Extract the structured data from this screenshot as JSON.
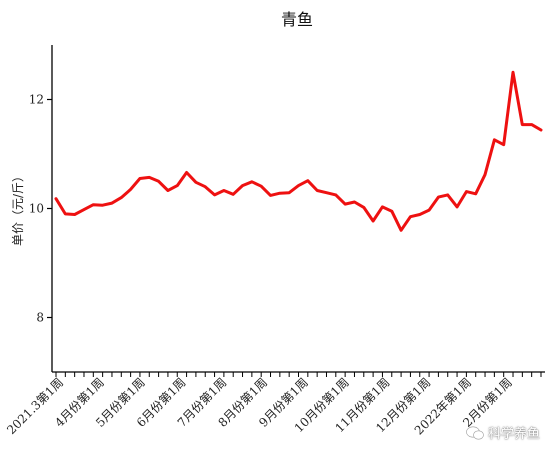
{
  "chart_data": {
    "type": "line",
    "title": "青鱼",
    "ylabel": "单价（元/斤）",
    "xlabel": "",
    "ylim": [
      7,
      13
    ],
    "yticks": [
      8,
      10,
      12
    ],
    "grid": false,
    "line_color": "#ee1111",
    "x_tick_labels": [
      "2021.3第1周",
      "4月份第1周",
      "5月份第1周",
      "6月份第1周",
      "7月份第1周",
      "8月份第1周",
      "9月份第1周",
      "10月份第1周",
      "11月份第1周",
      "12月份第1周",
      "2022年第1周",
      "2月份第1周"
    ],
    "series": [
      {
        "values": [
          10.18,
          9.9,
          9.89,
          9.98,
          10.07,
          10.06,
          10.1,
          10.2,
          10.35,
          10.55,
          10.57,
          10.5,
          10.33,
          10.42,
          10.66,
          10.48,
          10.4,
          10.25,
          10.33,
          10.26,
          10.42,
          10.49,
          10.41,
          10.24,
          10.28,
          10.29,
          10.42,
          10.51,
          10.33,
          10.29,
          10.25,
          10.08,
          10.12,
          10.02,
          9.77,
          10.03,
          9.95,
          9.6,
          9.85,
          9.89,
          9.97,
          10.21,
          10.25,
          10.03,
          10.31,
          10.27,
          10.62,
          11.26,
          11.17,
          12.5,
          11.54,
          11.54,
          11.44
        ]
      }
    ]
  },
  "watermark": {
    "text": "科学养鱼",
    "icon": "wechat-icon"
  }
}
